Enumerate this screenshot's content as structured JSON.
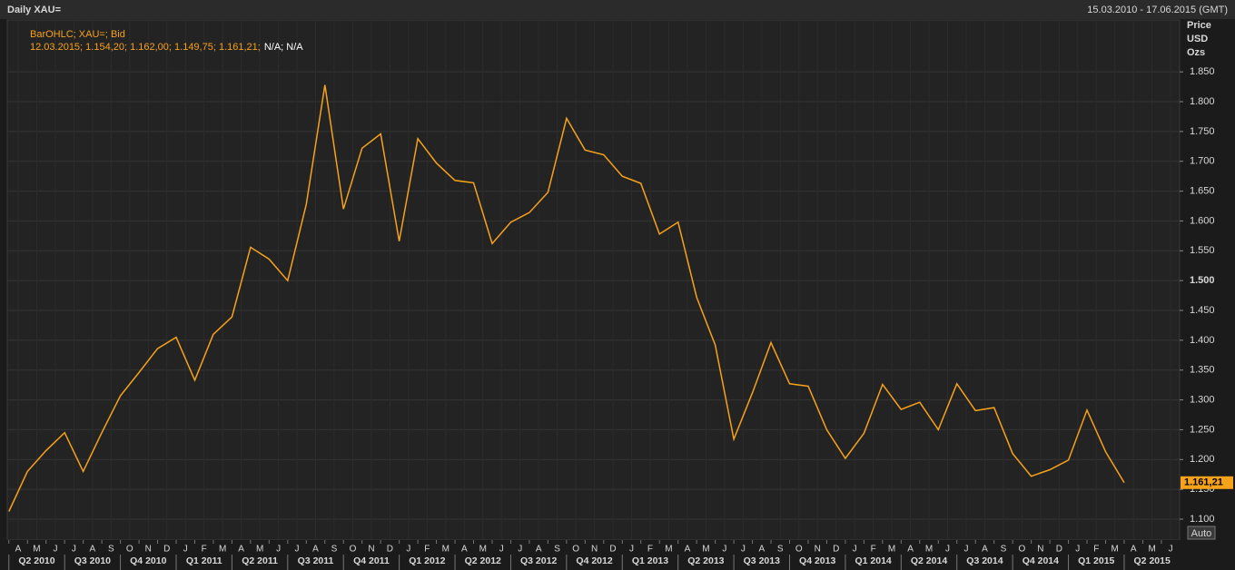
{
  "header": {
    "title": "Daily XAU=",
    "range": "15.03.2010 - 17.06.2015 (GMT)"
  },
  "legend": {
    "line1": "BarOHLC; XAU=; Bid",
    "line2": "12.03.2015; 1.154,20; 1.162,00; 1.149,75; 1.161,21;",
    "line2_extra": "N/A; N/A"
  },
  "unit": [
    "Price",
    "USD",
    "Ozs"
  ],
  "auto_button": "Auto",
  "chart_data": {
    "type": "line",
    "color": "#f7a21b",
    "grid": true,
    "x": [
      "2010-03",
      "2010-04",
      "2010-05",
      "2010-06",
      "2010-07",
      "2010-08",
      "2010-09",
      "2010-10",
      "2010-11",
      "2010-12",
      "2011-01",
      "2011-02",
      "2011-03",
      "2011-04",
      "2011-05",
      "2011-06",
      "2011-07",
      "2011-08",
      "2011-09",
      "2011-10",
      "2011-11",
      "2011-12",
      "2012-01",
      "2012-02",
      "2012-03",
      "2012-04",
      "2012-05",
      "2012-06",
      "2012-07",
      "2012-08",
      "2012-09",
      "2012-10",
      "2012-11",
      "2012-12",
      "2013-01",
      "2013-02",
      "2013-03",
      "2013-04",
      "2013-05",
      "2013-06",
      "2013-07",
      "2013-08",
      "2013-09",
      "2013-10",
      "2013-11",
      "2013-12",
      "2014-01",
      "2014-02",
      "2014-03",
      "2014-04",
      "2014-05",
      "2014-06",
      "2014-07",
      "2014-08",
      "2014-09",
      "2014-10",
      "2014-11",
      "2014-12",
      "2015-01",
      "2015-02",
      "2015-03"
    ],
    "values": [
      1113,
      1180,
      1215,
      1245,
      1180,
      1245,
      1307,
      1346,
      1386,
      1405,
      1333,
      1410,
      1439,
      1556,
      1536,
      1500,
      1628,
      1828,
      1620,
      1722,
      1746,
      1566,
      1738,
      1697,
      1668,
      1664,
      1562,
      1598,
      1614,
      1648,
      1772,
      1719,
      1711,
      1675,
      1663,
      1578,
      1598,
      1472,
      1392,
      1234,
      1312,
      1396,
      1327,
      1323,
      1250,
      1202,
      1244,
      1326,
      1284,
      1296,
      1250,
      1327,
      1282,
      1287,
      1210,
      1172,
      1183,
      1199,
      1283,
      1213,
      1161.21
    ],
    "last_label": "1.161,21",
    "ylim": [
      1065,
      1937
    ],
    "yticks": [
      {
        "value": 1100,
        "label": "1.100"
      },
      {
        "value": 1150,
        "label": "1.150"
      },
      {
        "value": 1200,
        "label": "1.200"
      },
      {
        "value": 1250,
        "label": "1.250"
      },
      {
        "value": 1300,
        "label": "1.300"
      },
      {
        "value": 1350,
        "label": "1.350"
      },
      {
        "value": 1400,
        "label": "1.400"
      },
      {
        "value": 1450,
        "label": "1.450"
      },
      {
        "value": 1500,
        "label": "1.500"
      },
      {
        "value": 1550,
        "label": "1.550"
      },
      {
        "value": 1600,
        "label": "1.600"
      },
      {
        "value": 1650,
        "label": "1.650"
      },
      {
        "value": 1700,
        "label": "1.700"
      },
      {
        "value": 1750,
        "label": "1.750"
      },
      {
        "value": 1800,
        "label": "1.800"
      },
      {
        "value": 1850,
        "label": "1.850"
      }
    ],
    "x_axis": {
      "months": [
        "A",
        "M",
        "J",
        "J",
        "A",
        "S",
        "O",
        "N",
        "D",
        "J",
        "F",
        "M",
        "A",
        "M",
        "J",
        "J",
        "A",
        "S",
        "O",
        "N",
        "D",
        "J",
        "F",
        "M",
        "A",
        "M",
        "J",
        "J",
        "A",
        "S",
        "O",
        "N",
        "D",
        "J",
        "F",
        "M",
        "A",
        "M",
        "J",
        "J",
        "A",
        "S",
        "O",
        "N",
        "D",
        "J",
        "F",
        "M",
        "A",
        "M",
        "J",
        "J",
        "A",
        "S",
        "O",
        "N",
        "D",
        "J",
        "F",
        "M",
        "A",
        "M",
        "J"
      ],
      "quarters": [
        "Q2 2010",
        "Q3 2010",
        "Q4 2010",
        "Q1 2011",
        "Q2 2011",
        "Q3 2011",
        "Q4 2011",
        "Q1 2012",
        "Q2 2012",
        "Q3 2012",
        "Q4 2012",
        "Q1 2013",
        "Q2 2013",
        "Q3 2013",
        "Q4 2013",
        "Q1 2014",
        "Q2 2014",
        "Q3 2014",
        "Q4 2014",
        "Q1 2015",
        "Q2 2015"
      ]
    }
  }
}
